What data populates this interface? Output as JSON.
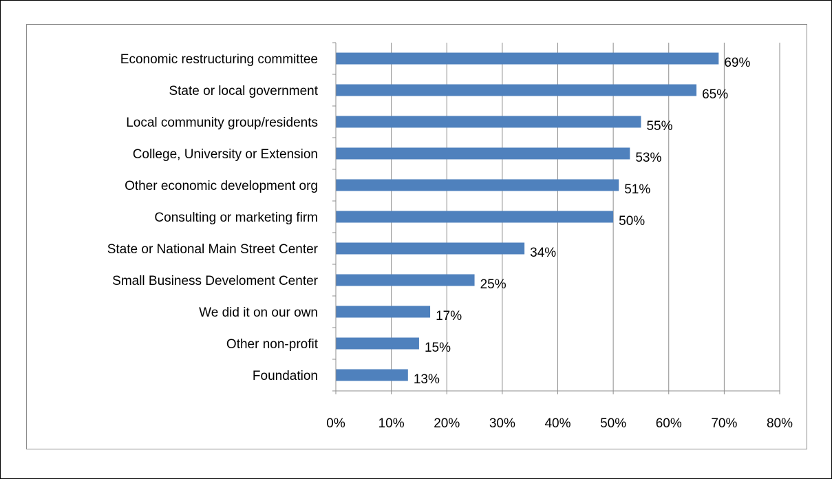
{
  "chart_data": {
    "type": "bar",
    "orientation": "horizontal",
    "categories": [
      "Economic restructuring committee",
      "State or local government",
      "Local community group/residents",
      "College, University or Extension",
      "Other economic development org",
      "Consulting or marketing firm",
      "State or National  Main Street Center",
      "Small Business Develoment Center",
      "We did it on our own",
      "Other non-profit",
      "Foundation"
    ],
    "values": [
      69,
      65,
      55,
      53,
      51,
      50,
      34,
      25,
      17,
      15,
      13
    ],
    "data_labels": [
      "69%",
      "65%",
      "55%",
      "53%",
      "51%",
      "50%",
      "34%",
      "25%",
      "17%",
      "15%",
      "13%"
    ],
    "xlim": [
      0,
      80
    ],
    "x_ticks": [
      0,
      10,
      20,
      30,
      40,
      50,
      60,
      70,
      80
    ],
    "x_tick_labels": [
      "0%",
      "10%",
      "20%",
      "30%",
      "40%",
      "50%",
      "60%",
      "70%",
      "80%"
    ],
    "title": "",
    "xlabel": "",
    "ylabel": "",
    "grid": "vertical",
    "legend": "none",
    "colors": {
      "bar": "#4f81bd",
      "grid": "#8c8c8c",
      "frame": "#8c8c8c",
      "text": "#000000"
    }
  }
}
